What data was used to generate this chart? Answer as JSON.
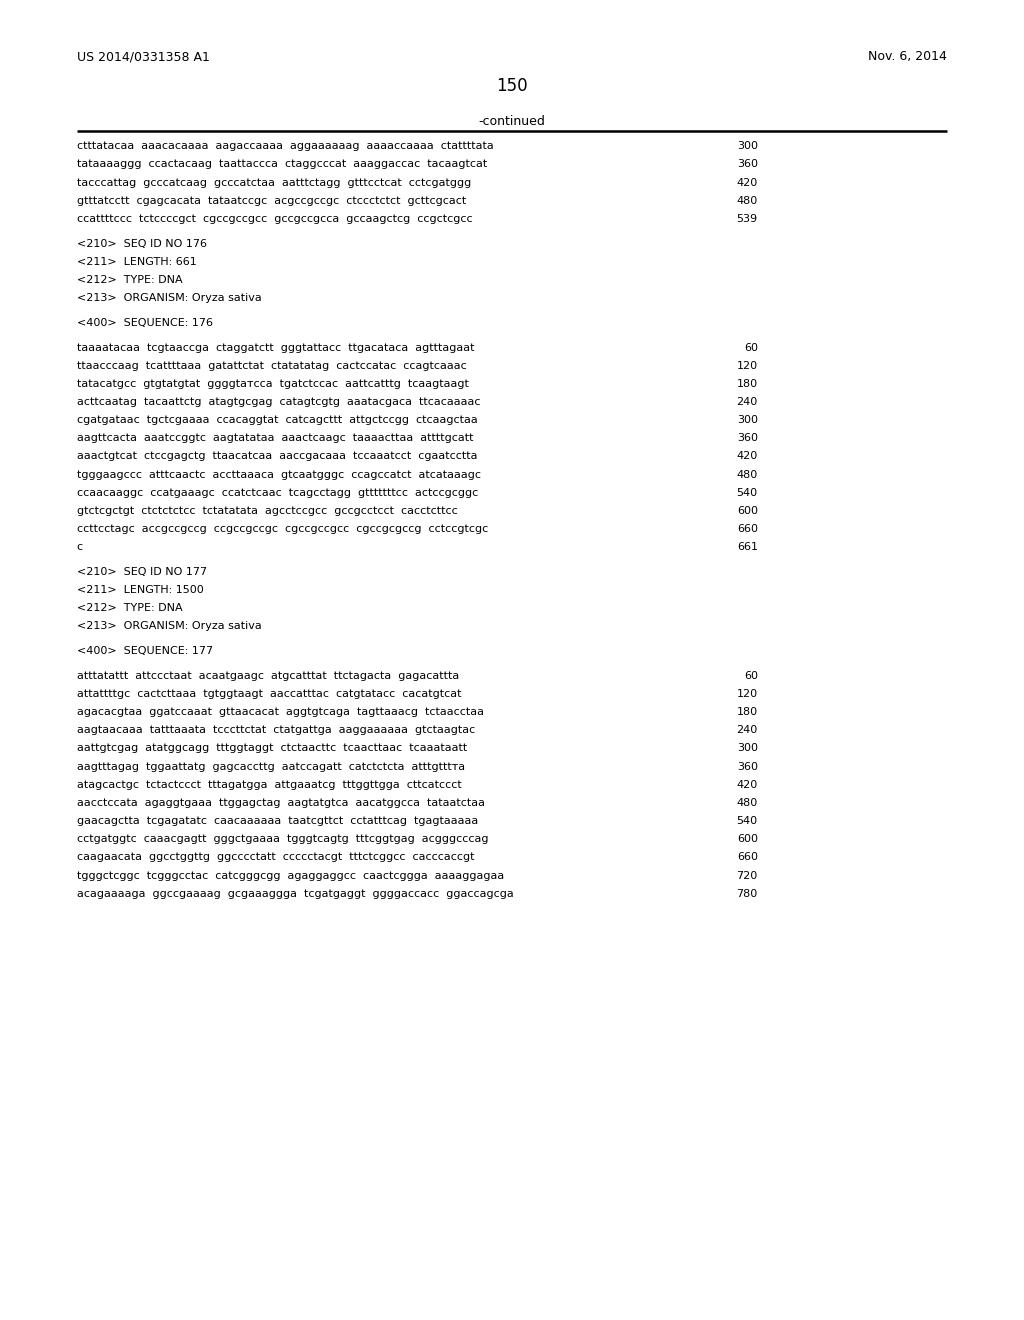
{
  "header_left": "US 2014/0331358 A1",
  "header_right": "Nov. 6, 2014",
  "page_number": "150",
  "continued_text": "-continued",
  "background_color": "#ffffff",
  "text_color": "#000000",
  "lines": [
    {
      "text": "ctttatacaa  aaacacaaaa  aagaccaaaa  aggaaaaaag  aaaaccaaaa  ctattttata",
      "num": "300",
      "type": "seq"
    },
    {
      "text": "tataaaaggg  ccactacaag  taattaccca  ctaggcccat  aaaggaccac  tacaagtcat",
      "num": "360",
      "type": "seq"
    },
    {
      "text": "tacccattag  gcccatcaag  gcccatctaa  aatttctagg  gtttcctcat  cctcgatggg",
      "num": "420",
      "type": "seq"
    },
    {
      "text": "gtttatcctt  cgagcacata  tataatccgc  acgccgccgc  ctccctctct  gcttcgcact",
      "num": "480",
      "type": "seq"
    },
    {
      "text": "ccattttccc  tctccccgct  cgccgccgcc  gccgccgcca  gccaagctcg  ccgctcgcc",
      "num": "539",
      "type": "seq"
    },
    {
      "text": "",
      "type": "blank"
    },
    {
      "text": "<210>  SEQ ID NO 176",
      "type": "meta"
    },
    {
      "text": "<211>  LENGTH: 661",
      "type": "meta"
    },
    {
      "text": "<212>  TYPE: DNA",
      "type": "meta"
    },
    {
      "text": "<213>  ORGANISM: Oryza sativa",
      "type": "meta"
    },
    {
      "text": "",
      "type": "blank"
    },
    {
      "text": "<400>  SEQUENCE: 176",
      "type": "meta"
    },
    {
      "text": "",
      "type": "blank"
    },
    {
      "text": "taaaatacaa  tcgtaaccga  ctaggatctt  gggtattacc  ttgacataca  agtttagaat",
      "num": "60",
      "type": "seq"
    },
    {
      "text": "ttaacccaag  tcattttaaa  gatattctat  ctatatatag  cactccatac  ccagtcaaac",
      "num": "120",
      "type": "seq"
    },
    {
      "text": "tatacatgcc  gtgtatgtat  ggggtатcca  tgatctccac  aattcatttg  tcaagtaagt",
      "num": "180",
      "type": "seq"
    },
    {
      "text": "acttcaatag  tacaattctg  atagtgcgag  catagtcgtg  aaatacgaca  ttcacaaaac",
      "num": "240",
      "type": "seq"
    },
    {
      "text": "cgatgataac  tgctcgaaaa  ccacaggtat  catcagcttt  attgctccgg  ctcaagctaa",
      "num": "300",
      "type": "seq"
    },
    {
      "text": "aagttcacta  aaatccggtc  aagtatataa  aaactcaagc  taaaacttaa  attttgcatt",
      "num": "360",
      "type": "seq"
    },
    {
      "text": "aaactgtcat  ctccgagctg  ttaacatcaa  aaccgacaaa  tccaaatcct  cgaatcctta",
      "num": "420",
      "type": "seq"
    },
    {
      "text": "tgggaagccc  atttcaactc  accttaaaca  gtcaatgggc  ccagccatct  atcataaagc",
      "num": "480",
      "type": "seq"
    },
    {
      "text": "ccaacaaggc  ccatgaaagc  ccatctcaac  tcagcctagg  gtttttttcc  actccgcggc",
      "num": "540",
      "type": "seq"
    },
    {
      "text": "gtctcgctgt  ctctctctcc  tctatatata  agcctccgcc  gccgcctcct  cacctcttcc",
      "num": "600",
      "type": "seq"
    },
    {
      "text": "ccttcctagc  accgccgccg  ccgccgccgc  cgccgccgcc  cgccgcgccg  cctccgtcgc",
      "num": "660",
      "type": "seq"
    },
    {
      "text": "c",
      "num": "661",
      "type": "seq"
    },
    {
      "text": "",
      "type": "blank"
    },
    {
      "text": "<210>  SEQ ID NO 177",
      "type": "meta"
    },
    {
      "text": "<211>  LENGTH: 1500",
      "type": "meta"
    },
    {
      "text": "<212>  TYPE: DNA",
      "type": "meta"
    },
    {
      "text": "<213>  ORGANISM: Oryza sativa",
      "type": "meta"
    },
    {
      "text": "",
      "type": "blank"
    },
    {
      "text": "<400>  SEQUENCE: 177",
      "type": "meta"
    },
    {
      "text": "",
      "type": "blank"
    },
    {
      "text": "atttatattt  attccctaat  acaatgaagc  atgcatttat  ttctagacta  gagacattta",
      "num": "60",
      "type": "seq"
    },
    {
      "text": "attattttgc  cactcttaaa  tgtggtaagt  aaccatttac  catgtatacc  cacatgtcat",
      "num": "120",
      "type": "seq"
    },
    {
      "text": "agacacgtaa  ggatccaaat  gttaacacat  aggtgtcaga  tagttaaacg  tctaacctaa",
      "num": "180",
      "type": "seq"
    },
    {
      "text": "aagtaacaaa  tatttaaata  tcccttctat  ctatgattga  aaggaaaaaa  gtctaagtac",
      "num": "240",
      "type": "seq"
    },
    {
      "text": "aattgtcgag  atatggcagg  tttggtaggt  ctctaacttc  tcaacttaac  tcaaataatt",
      "num": "300",
      "type": "seq"
    },
    {
      "text": "aagtttagag  tggaattatg  gagcaccttg  aatccagatt  catctctcta  atttgtttта",
      "num": "360",
      "type": "seq"
    },
    {
      "text": "atagcactgc  tctactccct  tttagatgga  attgaaatcg  tttggttgga  cttcatccct",
      "num": "420",
      "type": "seq"
    },
    {
      "text": "aacctccata  agaggtgaaa  ttggagctag  aagtatgtca  aacatggcca  tataatctaa",
      "num": "480",
      "type": "seq"
    },
    {
      "text": "gaacagctta  tcgagatatc  caacaaaaaa  taatcgttct  cctatttcag  tgagtaaaaa",
      "num": "540",
      "type": "seq"
    },
    {
      "text": "cctgatggtc  caaacgagtt  gggctgaaaa  tgggtcagtg  tttcggtgag  acgggcccag",
      "num": "600",
      "type": "seq"
    },
    {
      "text": "caagaacata  ggcctggttg  ggcccctatt  ccccctacgt  tttctcggcc  cacccaccgt",
      "num": "660",
      "type": "seq"
    },
    {
      "text": "tgggctcggc  tcgggcctac  catcgggcgg  agaggaggcc  caactcggga  aaaaggagaa",
      "num": "720",
      "type": "seq"
    },
    {
      "text": "acagaaaaga  ggccgaaaag  gcgaaaggga  tcgatgaggt  ggggaccacc  ggaccagcga",
      "num": "780",
      "type": "seq"
    }
  ]
}
